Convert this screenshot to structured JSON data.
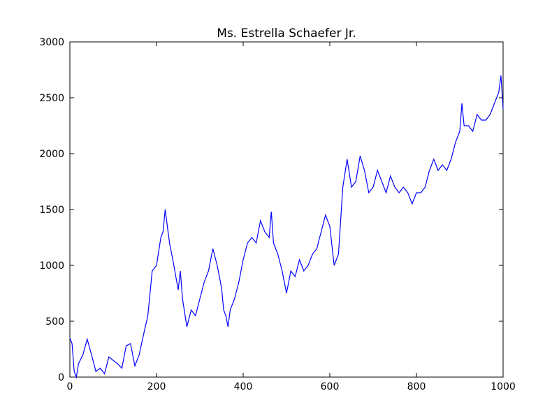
{
  "chart_data": {
    "type": "line",
    "title": "Ms. Estrella Schaefer Jr.",
    "x": [
      0,
      5,
      10,
      15,
      20,
      30,
      40,
      50,
      60,
      70,
      80,
      90,
      100,
      110,
      120,
      130,
      140,
      150,
      160,
      170,
      180,
      190,
      200,
      210,
      215,
      220,
      230,
      240,
      250,
      255,
      260,
      270,
      280,
      290,
      300,
      310,
      320,
      330,
      340,
      350,
      355,
      360,
      365,
      370,
      380,
      390,
      400,
      410,
      420,
      430,
      440,
      450,
      460,
      465,
      470,
      480,
      490,
      500,
      510,
      520,
      530,
      540,
      550,
      560,
      570,
      580,
      590,
      600,
      610,
      620,
      630,
      640,
      650,
      660,
      670,
      680,
      690,
      700,
      710,
      720,
      730,
      740,
      750,
      760,
      770,
      780,
      790,
      800,
      810,
      820,
      830,
      840,
      850,
      860,
      870,
      880,
      890,
      900,
      905,
      910,
      920,
      930,
      940,
      950,
      960,
      970,
      980,
      990,
      995,
      1000
    ],
    "series": [
      {
        "color": "#0000ff",
        "values": [
          350,
          300,
          50,
          0,
          120,
          200,
          340,
          200,
          50,
          80,
          30,
          180,
          150,
          120,
          80,
          280,
          300,
          100,
          200,
          380,
          550,
          950,
          1000,
          1250,
          1300,
          1500,
          1200,
          1000,
          780,
          950,
          700,
          450,
          600,
          550,
          700,
          850,
          950,
          1150,
          1000,
          800,
          600,
          550,
          450,
          600,
          700,
          850,
          1050,
          1200,
          1250,
          1200,
          1400,
          1300,
          1250,
          1480,
          1200,
          1100,
          950,
          750,
          950,
          900,
          1050,
          950,
          1000,
          1100,
          1150,
          1300,
          1450,
          1350,
          1000,
          1100,
          1700,
          1950,
          1700,
          1750,
          1980,
          1850,
          1650,
          1700,
          1850,
          1750,
          1650,
          1800,
          1700,
          1650,
          1700,
          1650,
          1550,
          1650,
          1650,
          1700,
          1850,
          1950,
          1850,
          1900,
          1850,
          1950,
          2100,
          2200,
          2450,
          2250,
          2250,
          2200,
          2350,
          2300,
          2300,
          2350,
          2450,
          2550,
          2700,
          2400
        ]
      }
    ],
    "xlim": [
      0,
      1000
    ],
    "xticks": [
      0,
      200,
      400,
      600,
      800,
      1000
    ],
    "ylim": [
      0,
      3000
    ],
    "yticks": [
      0,
      500,
      1000,
      1500,
      2000,
      2500,
      3000
    ]
  }
}
